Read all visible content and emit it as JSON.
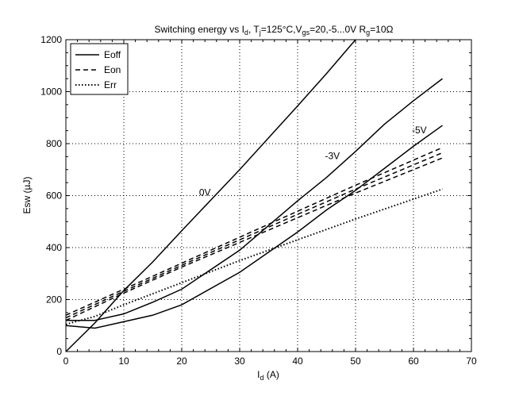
{
  "chart_data": {
    "type": "line",
    "title": {
      "main": "Switching energy vs I",
      "sub1": "d",
      "p2": ", T",
      "sub2": "j",
      "p3": "=125°C,V",
      "sub3": "gs",
      "p4": "=20,-5...0V R",
      "sub4": "g",
      "p5": "=10Ω"
    },
    "xlabel": {
      "main": "I",
      "sub": "d",
      "rest": " (A)"
    },
    "ylabel": "Esw (µJ)",
    "xlim": [
      0,
      70
    ],
    "ylim": [
      0,
      1200
    ],
    "xticks": [
      0,
      10,
      20,
      30,
      40,
      50,
      60,
      70
    ],
    "yticks": [
      0,
      200,
      400,
      600,
      800,
      1000,
      1200
    ],
    "grid": true,
    "legend": {
      "placement": "top-left",
      "entries": [
        {
          "label": "Eoff",
          "style": "solid"
        },
        {
          "label": "Eon",
          "style": "dashed"
        },
        {
          "label": "Err",
          "style": "dotted"
        }
      ]
    },
    "annotations": [
      {
        "text": "0V",
        "x": 24,
        "y": 600
      },
      {
        "text": "-3V",
        "x": 46,
        "y": 740
      },
      {
        "text": "-5V",
        "x": 61,
        "y": 840
      }
    ],
    "series": [
      {
        "type": "Eoff",
        "vgs": "0V",
        "style": "solid",
        "x": [
          0,
          5,
          10,
          15,
          20,
          30,
          40,
          45,
          50
        ],
        "y": [
          0,
          110,
          235,
          345,
          465,
          700,
          945,
          1070,
          1200
        ]
      },
      {
        "type": "Eoff",
        "vgs": "-3V",
        "style": "solid",
        "x": [
          0,
          5,
          10,
          15,
          20,
          30,
          40,
          45,
          50,
          55,
          60,
          65
        ],
        "y": [
          120,
          120,
          145,
          190,
          240,
          390,
          580,
          670,
          770,
          875,
          965,
          1050
        ]
      },
      {
        "type": "Eoff",
        "vgs": "-5V",
        "style": "solid",
        "x": [
          0,
          5,
          10,
          15,
          20,
          30,
          40,
          45,
          50,
          55,
          60,
          65
        ],
        "y": [
          100,
          90,
          115,
          140,
          180,
          305,
          460,
          545,
          620,
          705,
          790,
          870
        ]
      },
      {
        "type": "Eon",
        "style": "dashed",
        "x": [
          0,
          10,
          20,
          30,
          40,
          50,
          65
        ],
        "y": [
          140,
          240,
          340,
          440,
          540,
          640,
          785
        ]
      },
      {
        "type": "Eon",
        "style": "dashed",
        "x": [
          0,
          10,
          20,
          30,
          40,
          50,
          65
        ],
        "y": [
          130,
          232,
          332,
          430,
          528,
          625,
          765
        ]
      },
      {
        "type": "Eon",
        "style": "dashed",
        "x": [
          0,
          10,
          20,
          30,
          40,
          50,
          65
        ],
        "y": [
          120,
          225,
          325,
          420,
          515,
          610,
          745
        ]
      },
      {
        "type": "Err",
        "style": "dotted",
        "x": [
          0,
          5,
          10,
          20,
          30,
          40,
          50,
          65
        ],
        "y": [
          105,
          135,
          180,
          265,
          350,
          430,
          510,
          625
        ]
      }
    ]
  }
}
